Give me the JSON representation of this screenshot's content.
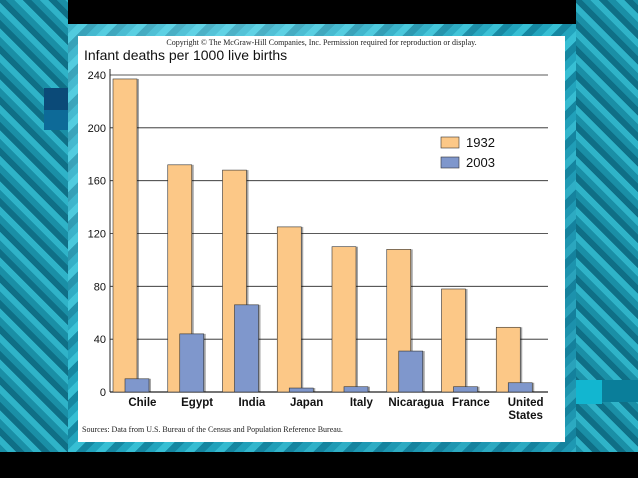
{
  "copyright": "Copyright © The McGraw-Hill Companies, Inc. Permission required for reproduction or display.",
  "source": "Sources: Data from U.S. Bureau of the Census and Population Reference Bureau.",
  "colors": {
    "series_1932": "#fcc887",
    "series_2003": "#7f97cc",
    "outline": "#333333"
  },
  "chart_data": {
    "type": "bar",
    "title": "",
    "ylabel": "Infant deaths per 1000 live births",
    "xlabel": "",
    "categories": [
      "Chile",
      "Egypt",
      "India",
      "Japan",
      "Italy",
      "Nicaragua",
      "France",
      "United States"
    ],
    "series": [
      {
        "name": "1932",
        "values": [
          237,
          172,
          168,
          125,
          110,
          108,
          78,
          49
        ]
      },
      {
        "name": "2003",
        "values": [
          10,
          44,
          66,
          3,
          4,
          31,
          4,
          7
        ]
      }
    ],
    "ylim": [
      0,
      240
    ],
    "yticks": [
      0,
      40,
      80,
      120,
      160,
      200,
      240
    ],
    "grid": true,
    "legend": "top-right"
  }
}
